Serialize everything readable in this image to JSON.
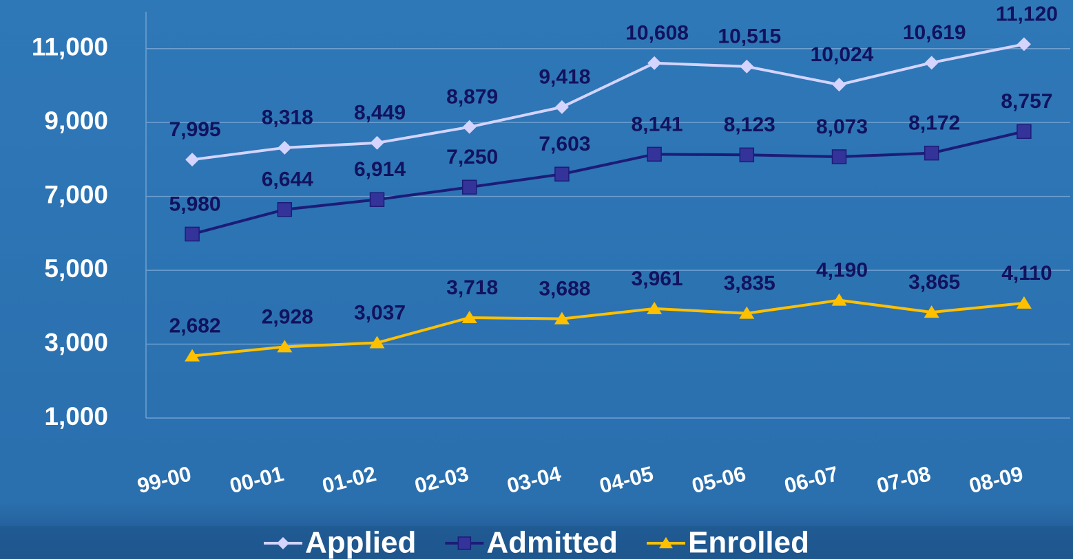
{
  "chart_data": {
    "type": "line",
    "categories": [
      "99-00",
      "00-01",
      "01-02",
      "02-03",
      "03-04",
      "04-05",
      "05-06",
      "06-07",
      "07-08",
      "08-09"
    ],
    "series": [
      {
        "name": "Applied",
        "color": "#d4d4ff",
        "marker": "diamond",
        "values": [
          7995,
          8318,
          8449,
          8879,
          9418,
          10608,
          10515,
          10024,
          10619,
          11120
        ],
        "value_labels": [
          "7,995",
          "8,318",
          "8,449",
          "8,879",
          "9,418",
          "10,608",
          "10,515",
          "10,024",
          "10,619",
          "11,120"
        ]
      },
      {
        "name": "Admitted",
        "color": "#1c1c78",
        "marker_color": "#333399",
        "marker": "square",
        "values": [
          5980,
          6644,
          6914,
          7250,
          7603,
          8141,
          8123,
          8073,
          8172,
          8757
        ],
        "value_labels": [
          "5,980",
          "6,644",
          "6,914",
          "7,250",
          "7,603",
          "8,141",
          "8,123",
          "8,073",
          "8,172",
          "8,757"
        ]
      },
      {
        "name": "Enrolled",
        "color": "#ffc000",
        "marker": "triangle",
        "values": [
          2682,
          2928,
          3037,
          3718,
          3688,
          3961,
          3835,
          4190,
          3865,
          4110
        ],
        "value_labels": [
          "2,682",
          "2,928",
          "3,037",
          "3,718",
          "3,688",
          "3,961",
          "3,835",
          "4,190",
          "3,865",
          "4,110"
        ]
      }
    ],
    "ylim": [
      1000,
      12000
    ],
    "yticks": [
      {
        "value": 1000,
        "label": "1,000"
      },
      {
        "value": 3000,
        "label": "3,000"
      },
      {
        "value": 5000,
        "label": "5,000"
      },
      {
        "value": 7000,
        "label": "7,000"
      },
      {
        "value": 9000,
        "label": "9,000"
      },
      {
        "value": 11000,
        "label": "11,000"
      }
    ],
    "grid": true,
    "legend": "bottom"
  }
}
